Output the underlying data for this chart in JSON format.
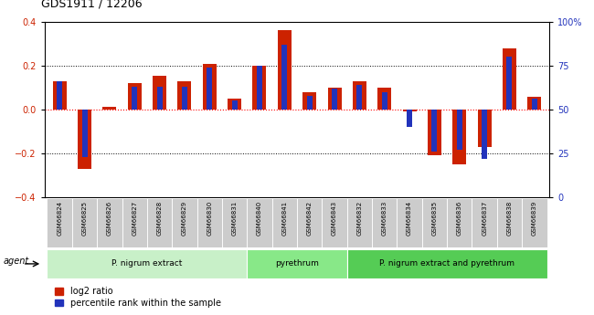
{
  "title": "GDS1911 / 12206",
  "samples": [
    "GSM66824",
    "GSM66825",
    "GSM66826",
    "GSM66827",
    "GSM66828",
    "GSM66829",
    "GSM66830",
    "GSM66831",
    "GSM66840",
    "GSM66841",
    "GSM66842",
    "GSM66843",
    "GSM66832",
    "GSM66833",
    "GSM66834",
    "GSM66835",
    "GSM66836",
    "GSM66837",
    "GSM66838",
    "GSM66839"
  ],
  "log2_ratio": [
    0.13,
    -0.27,
    0.01,
    0.12,
    0.155,
    0.13,
    0.21,
    0.05,
    0.2,
    0.365,
    0.08,
    0.1,
    0.13,
    0.1,
    -0.01,
    -0.21,
    -0.25,
    -0.17,
    0.28,
    0.06
  ],
  "pct_rank_raw": [
    66,
    23,
    50,
    63,
    63,
    63,
    74,
    55,
    75,
    87,
    58,
    62,
    64,
    60,
    40,
    26,
    27,
    22,
    80,
    56
  ],
  "groups": [
    {
      "label": "P. nigrum extract",
      "start": 0,
      "end": 8,
      "color": "#c8f0c8"
    },
    {
      "label": "pyrethrum",
      "start": 8,
      "end": 12,
      "color": "#88e888"
    },
    {
      "label": "P. nigrum extract and pyrethrum",
      "start": 12,
      "end": 20,
      "color": "#55cc55"
    }
  ],
  "red_color": "#cc2200",
  "blue_color": "#2233bb",
  "ylim_left": [
    -0.4,
    0.4
  ],
  "ylim_right": [
    0,
    100
  ],
  "yticks_left": [
    -0.4,
    -0.2,
    0.0,
    0.2,
    0.4
  ],
  "yticks_right": [
    0,
    25,
    50,
    75,
    100
  ],
  "legend_red": "log2 ratio",
  "legend_blue": "percentile rank within the sample",
  "agent_label": "agent"
}
